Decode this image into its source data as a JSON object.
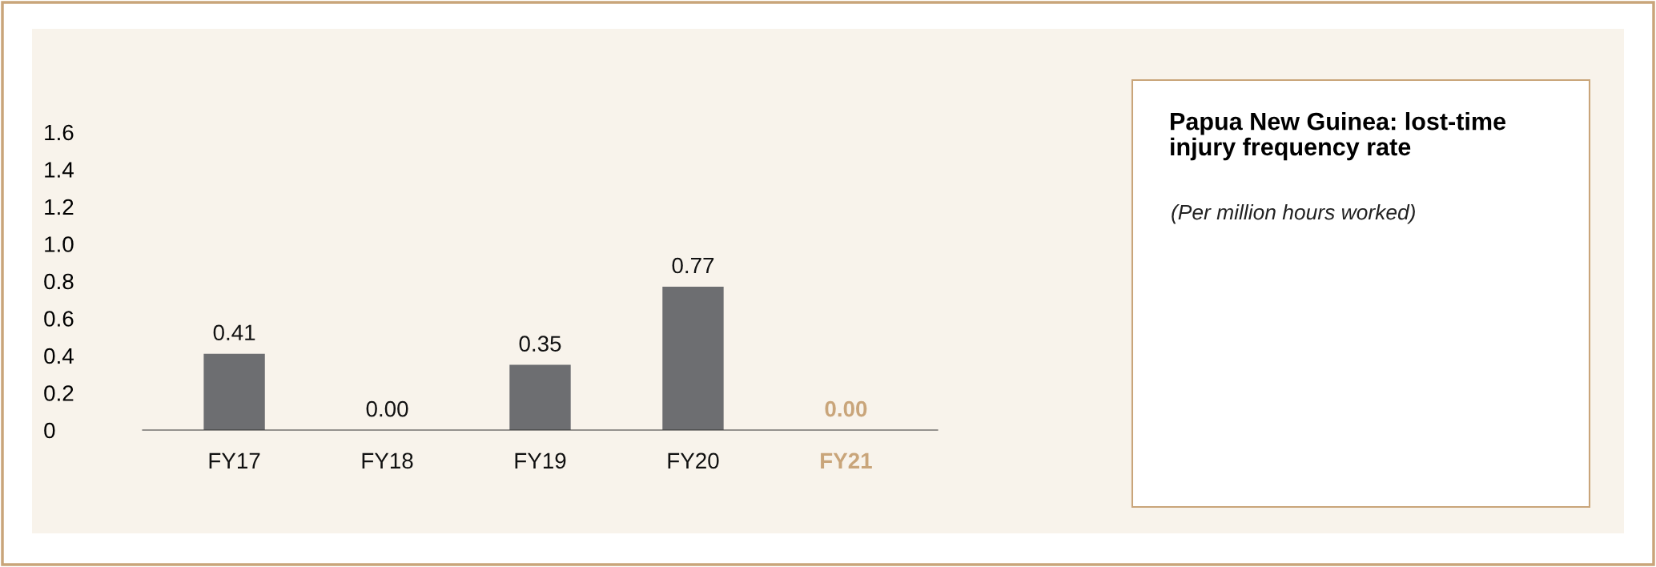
{
  "chart_data": {
    "type": "bar",
    "title": "Papua New Guinea: lost-time injury frequency rate",
    "subtitle": "(Per million hours worked)",
    "categories": [
      "FY17",
      "FY18",
      "FY19",
      "FY20",
      "FY21"
    ],
    "values": [
      0.41,
      0.0,
      0.35,
      0.77,
      0.0
    ],
    "value_labels": [
      "0.41",
      "0.00",
      "0.35",
      "0.77",
      "0.00"
    ],
    "colors": [
      "#6d6e71",
      "#6d6e71",
      "#6d6e71",
      "#6d6e71",
      "#c9a57a"
    ],
    "ylim": [
      0,
      1.6
    ],
    "yticks": [
      0,
      0.2,
      0.4,
      0.6,
      0.8,
      {
        "value": 1.0,
        "label": "1.0"
      },
      1.2,
      1.4,
      1.6
    ],
    "grid": false,
    "legend": false
  }
}
